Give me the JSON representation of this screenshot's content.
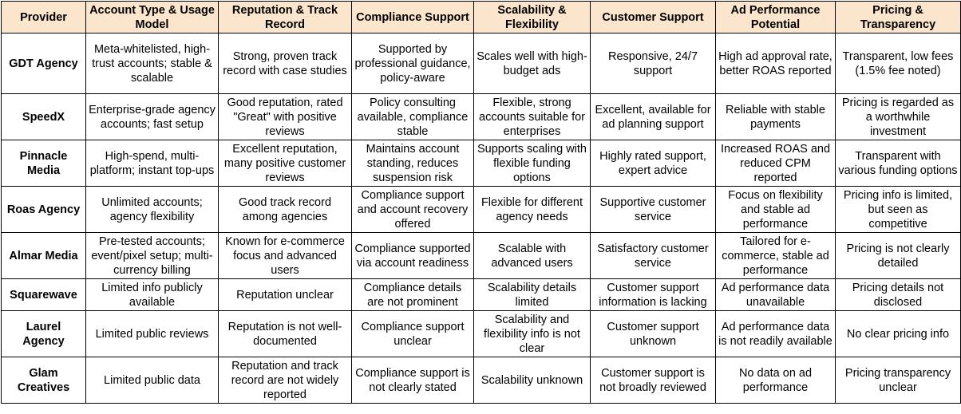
{
  "headers": [
    "Provider",
    "Account Type & Usage Model",
    "Reputation & Track Record",
    "Compliance Support",
    "Scalability & Flexibility",
    "Customer Support",
    "Ad Performance Potential",
    "Pricing & Transparency"
  ],
  "rows": [
    {
      "provider": "GDT Agency",
      "account_type": "Meta-whitelisted, high-trust accounts; stable & scalable",
      "reputation": "Strong, proven track record with case studies",
      "compliance": "Supported by professional guidance, policy-aware",
      "scalability": "Scales well with high-budget ads",
      "customer_support": "Responsive, 24/7 support",
      "ad_performance": "High ad approval rate, better ROAS reported",
      "pricing": "Transparent, low fees (1.5% fee noted)"
    },
    {
      "provider": "SpeedX",
      "account_type": "Enterprise-grade agency accounts; fast setup",
      "reputation": "Good reputation, rated \"Great\" with positive reviews",
      "compliance": "Policy consulting available, compliance stable",
      "scalability": "Flexible, strong accounts suitable for enterprises",
      "customer_support": "Excellent, available for ad planning support",
      "ad_performance": "Reliable with stable payments",
      "pricing": "Pricing is regarded as a worthwhile investment"
    },
    {
      "provider": "Pinnacle Media",
      "account_type": "High-spend, multi-platform; instant top-ups",
      "reputation": "Excellent reputation, many positive customer reviews",
      "compliance": "Maintains account standing, reduces suspension risk",
      "scalability": "Supports scaling with flexible funding options",
      "customer_support": "Highly rated support, expert advice",
      "ad_performance": "Increased ROAS and reduced CPM reported",
      "pricing": "Transparent with various funding options"
    },
    {
      "provider": "Roas Agency",
      "account_type": "Unlimited accounts; agency flexibility",
      "reputation": "Good track record among agencies",
      "compliance": "Compliance support and account recovery offered",
      "scalability": "Flexible for different agency needs",
      "customer_support": "Supportive customer service",
      "ad_performance": "Focus on flexibility and stable ad performance",
      "pricing": "Pricing info is limited, but seen as competitive"
    },
    {
      "provider": "Almar Media",
      "account_type": "Pre-tested accounts; event/pixel setup; multi-currency billing",
      "reputation": "Known for e-commerce focus and advanced users",
      "compliance": "Compliance supported via account readiness",
      "scalability": "Scalable with advanced users",
      "customer_support": "Satisfactory customer service",
      "ad_performance": "Tailored for e-commerce, stable ad performance",
      "pricing": "Pricing is not clearly detailed"
    },
    {
      "provider": "Squarewave",
      "account_type": "Limited info publicly available",
      "reputation": "Reputation unclear",
      "compliance": "Compliance details are not prominent",
      "scalability": "Scalability details limited",
      "customer_support": "Customer support information is lacking",
      "ad_performance": "Ad performance data unavailable",
      "pricing": "Pricing details not disclosed"
    },
    {
      "provider": "Laurel Agency",
      "account_type": "Limited public reviews",
      "reputation": "Reputation is not well-documented",
      "compliance": "Compliance support unclear",
      "scalability": "Scalability and flexibility info is not clear",
      "customer_support": "Customer support unknown",
      "ad_performance": "Ad performance data is not readily available",
      "pricing": "No clear pricing info"
    },
    {
      "provider": "Glam Creatives",
      "account_type": "Limited public data",
      "reputation": "Reputation and track record are not widely reported",
      "compliance": "Compliance support is not clearly stated",
      "scalability": "Scalability unknown",
      "customer_support": "Customer support is not broadly reviewed",
      "ad_performance": "No data on ad performance",
      "pricing": "Pricing transparency unclear"
    }
  ]
}
